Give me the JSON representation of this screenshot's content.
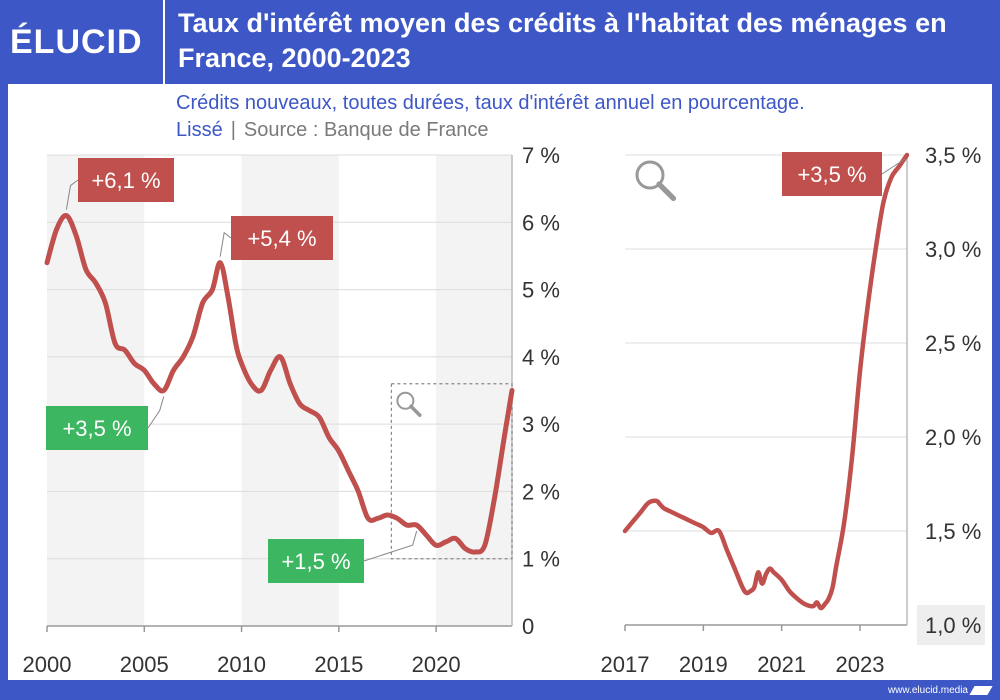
{
  "brand": {
    "logo": "ÉLUCID",
    "footer_url": "www.elucid.media"
  },
  "header": {
    "title": "Taux d'intérêt moyen des crédits à l'habitat des ménages en France, 2000-2023",
    "subtitle": "Crédits nouveaux, toutes durées, taux d'intérêt annuel en pourcentage.",
    "subtitle_note": "Lissé",
    "source": "Source : Banque de France"
  },
  "colors": {
    "line": "#c0504d",
    "label_red": "#c0504d",
    "label_green": "#3cb660",
    "brand_blue": "#3d57c6",
    "band": "#f3f3f3"
  },
  "chart_data": [
    {
      "type": "line",
      "xlim": [
        2000,
        2023.9
      ],
      "ylim": [
        0,
        7
      ],
      "x_ticks": [
        2000,
        2005,
        2010,
        2015,
        2020
      ],
      "x_tick_labels": [
        "2000",
        "2005",
        "2010",
        "2015",
        "2020"
      ],
      "y_ticks": [
        0,
        1,
        2,
        3,
        4,
        5,
        6,
        7
      ],
      "y_tick_labels": [
        "0",
        "1 %",
        "2 %",
        "3 %",
        "4 %",
        "5 %",
        "6 %",
        "7 %"
      ],
      "grid": true,
      "series": [
        {
          "x": [
            2000,
            2000.5,
            2001,
            2001.5,
            2002,
            2002.5,
            2003,
            2003.5,
            2004,
            2004.5,
            2005,
            2005.5,
            2006,
            2006.5,
            2007,
            2007.5,
            2008,
            2008.5,
            2008.9,
            2009.3,
            2009.7,
            2010,
            2010.5,
            2011,
            2011.5,
            2012,
            2012.5,
            2013,
            2013.5,
            2014,
            2014.5,
            2015,
            2015.5,
            2016,
            2016.5,
            2017,
            2017.5,
            2018,
            2018.5,
            2019,
            2019.5,
            2020,
            2020.5,
            2021,
            2021.5,
            2022,
            2022.5,
            2023,
            2023.5,
            2023.9
          ],
          "values": [
            5.4,
            5.9,
            6.1,
            5.8,
            5.3,
            5.1,
            4.8,
            4.2,
            4.1,
            3.9,
            3.8,
            3.6,
            3.5,
            3.8,
            4.0,
            4.3,
            4.8,
            5.0,
            5.4,
            4.9,
            4.2,
            3.9,
            3.6,
            3.5,
            3.8,
            4.0,
            3.6,
            3.3,
            3.2,
            3.1,
            2.8,
            2.6,
            2.3,
            2.0,
            1.6,
            1.6,
            1.65,
            1.6,
            1.5,
            1.5,
            1.35,
            1.2,
            1.25,
            1.3,
            1.15,
            1.1,
            1.2,
            1.9,
            2.8,
            3.5
          ]
        }
      ],
      "annotations": [
        {
          "text": "+6,1 %",
          "kind": "max",
          "x": 2001,
          "y": 6.1
        },
        {
          "text": "+5,4 %",
          "kind": "max",
          "x": 2008.9,
          "y": 5.4
        },
        {
          "text": "+3,5 %",
          "kind": "min",
          "x": 2006,
          "y": 3.5
        },
        {
          "text": "+1,5 %",
          "kind": "min",
          "x": 2019,
          "y": 1.5
        }
      ],
      "zoom_box": {
        "x": [
          2017.7,
          2023.9
        ],
        "y": [
          1.0,
          3.6
        ]
      }
    },
    {
      "type": "line",
      "xlim": [
        2017,
        2024.2
      ],
      "ylim": [
        1.0,
        3.5
      ],
      "x_ticks": [
        2017,
        2019,
        2021,
        2023
      ],
      "x_tick_labels": [
        "2017",
        "2019",
        "2021",
        "2023"
      ],
      "y_ticks": [
        1.0,
        1.5,
        2.0,
        2.5,
        3.0,
        3.5
      ],
      "y_tick_labels": [
        "1,0 %",
        "1,5 %",
        "2,0 %",
        "2,5 %",
        "3,0 %",
        "3,5 %"
      ],
      "grid": true,
      "series": [
        {
          "x": [
            2017,
            2017.2,
            2017.4,
            2017.6,
            2017.8,
            2017.9,
            2018.0,
            2018.2,
            2018.4,
            2018.6,
            2018.8,
            2019.0,
            2019.2,
            2019.4,
            2019.6,
            2019.8,
            2020.0,
            2020.1,
            2020.2,
            2020.3,
            2020.4,
            2020.5,
            2020.6,
            2020.7,
            2020.8,
            2021.0,
            2021.2,
            2021.4,
            2021.6,
            2021.8,
            2021.9,
            2022.0,
            2022.1,
            2022.2,
            2022.3,
            2022.4,
            2022.6,
            2022.8,
            2023.0,
            2023.2,
            2023.4,
            2023.6,
            2023.8,
            2024.0,
            2024.2
          ],
          "values": [
            1.5,
            1.55,
            1.6,
            1.65,
            1.66,
            1.64,
            1.62,
            1.6,
            1.58,
            1.56,
            1.54,
            1.52,
            1.49,
            1.5,
            1.4,
            1.3,
            1.2,
            1.17,
            1.18,
            1.2,
            1.28,
            1.22,
            1.27,
            1.3,
            1.28,
            1.24,
            1.18,
            1.14,
            1.11,
            1.1,
            1.12,
            1.09,
            1.11,
            1.14,
            1.2,
            1.32,
            1.55,
            1.9,
            2.35,
            2.7,
            3.0,
            3.25,
            3.38,
            3.44,
            3.5
          ]
        }
      ],
      "annotations": [
        {
          "text": "+3,5 %",
          "kind": "max",
          "x": 2024.2,
          "y": 3.5
        }
      ]
    }
  ]
}
